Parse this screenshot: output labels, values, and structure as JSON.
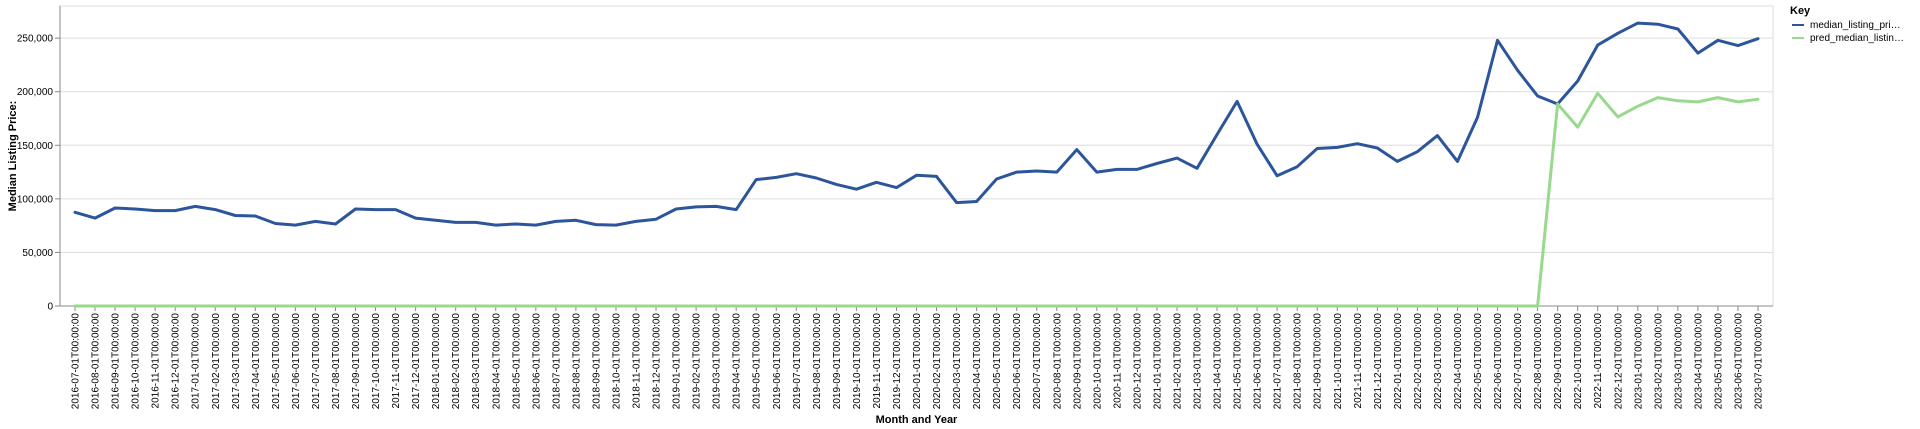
{
  "chart_data": {
    "type": "line",
    "title": "",
    "xlabel": "Month and Year",
    "ylabel": "Median Listing Price:",
    "ylim": [
      0,
      280000
    ],
    "yticks": [
      0,
      50000,
      100000,
      150000,
      200000,
      250000
    ],
    "ytick_labels": [
      "0",
      "50,000",
      "100,000",
      "150,000",
      "200,000",
      "250,000"
    ],
    "grid": true,
    "legend": {
      "title": "Key",
      "placement": "right"
    },
    "x": [
      "2016-07-01T00:00:00",
      "2016-08-01T00:00:00",
      "2016-09-01T00:00:00",
      "2016-10-01T00:00:00",
      "2016-11-01T00:00:00",
      "2016-12-01T00:00:00",
      "2017-01-01T00:00:00",
      "2017-02-01T00:00:00",
      "2017-03-01T00:00:00",
      "2017-04-01T00:00:00",
      "2017-05-01T00:00:00",
      "2017-06-01T00:00:00",
      "2017-07-01T00:00:00",
      "2017-08-01T00:00:00",
      "2017-09-01T00:00:00",
      "2017-10-01T00:00:00",
      "2017-11-01T00:00:00",
      "2017-12-01T00:00:00",
      "2018-01-01T00:00:00",
      "2018-02-01T00:00:00",
      "2018-03-01T00:00:00",
      "2018-04-01T00:00:00",
      "2018-05-01T00:00:00",
      "2018-06-01T00:00:00",
      "2018-07-01T00:00:00",
      "2018-08-01T00:00:00",
      "2018-09-01T00:00:00",
      "2018-10-01T00:00:00",
      "2018-11-01T00:00:00",
      "2018-12-01T00:00:00",
      "2019-01-01T00:00:00",
      "2019-02-01T00:00:00",
      "2019-03-01T00:00:00",
      "2019-04-01T00:00:00",
      "2019-05-01T00:00:00",
      "2019-06-01T00:00:00",
      "2019-07-01T00:00:00",
      "2019-08-01T00:00:00",
      "2019-09-01T00:00:00",
      "2019-10-01T00:00:00",
      "2019-11-01T00:00:00",
      "2019-12-01T00:00:00",
      "2020-01-01T00:00:00",
      "2020-02-01T00:00:00",
      "2020-03-01T00:00:00",
      "2020-04-01T00:00:00",
      "2020-05-01T00:00:00",
      "2020-06-01T00:00:00",
      "2020-07-01T00:00:00",
      "2020-08-01T00:00:00",
      "2020-09-01T00:00:00",
      "2020-10-01T00:00:00",
      "2020-11-01T00:00:00",
      "2020-12-01T00:00:00",
      "2021-01-01T00:00:00",
      "2021-02-01T00:00:00",
      "2021-03-01T00:00:00",
      "2021-04-01T00:00:00",
      "2021-05-01T00:00:00",
      "2021-06-01T00:00:00",
      "2021-07-01T00:00:00",
      "2021-08-01T00:00:00",
      "2021-09-01T00:00:00",
      "2021-10-01T00:00:00",
      "2021-11-01T00:00:00",
      "2021-12-01T00:00:00",
      "2022-01-01T00:00:00",
      "2022-02-01T00:00:00",
      "2022-03-01T00:00:00",
      "2022-04-01T00:00:00",
      "2022-05-01T00:00:00",
      "2022-06-01T00:00:00",
      "2022-07-01T00:00:00",
      "2022-08-01T00:00:00",
      "2022-09-01T00:00:00",
      "2022-10-01T00:00:00",
      "2022-11-01T00:00:00",
      "2022-12-01T00:00:00",
      "2023-01-01T00:00:00",
      "2023-02-01T00:00:00",
      "2023-03-01T00:00:00",
      "2023-04-01T00:00:00",
      "2023-05-01T00:00:00",
      "2023-06-01T00:00:00",
      "2023-07-01T00:00:00"
    ],
    "series": [
      {
        "name": "median_listing_pri…",
        "color": "#2c559c",
        "values": [
          87500,
          82000,
          91500,
          90500,
          89000,
          89000,
          93000,
          90000,
          84500,
          84000,
          77000,
          75500,
          79000,
          76500,
          90500,
          90000,
          90000,
          82000,
          80000,
          78000,
          78000,
          75500,
          76500,
          75500,
          79000,
          80000,
          76000,
          75500,
          79000,
          81000,
          90500,
          92500,
          93000,
          90000,
          118000,
          120000,
          123500,
          119500,
          113500,
          109000,
          115500,
          110500,
          122000,
          121000,
          96500,
          97500,
          118500,
          125000,
          126000,
          125000,
          146000,
          125000,
          127500,
          127500,
          133000,
          138000,
          128500,
          160000,
          191000,
          151000,
          121500,
          130000,
          147000,
          148000,
          151500,
          147500,
          135000,
          144000,
          159000,
          135000,
          176000,
          248000,
          220000,
          196000,
          188500,
          210000,
          243500,
          254500,
          264000,
          263000,
          258500,
          236000,
          248000,
          243000,
          249500
        ]
      },
      {
        "name": "pred_median_listin…",
        "color": "#98d98e",
        "values": [
          0,
          0,
          0,
          0,
          0,
          0,
          0,
          0,
          0,
          0,
          0,
          0,
          0,
          0,
          0,
          0,
          0,
          0,
          0,
          0,
          0,
          0,
          0,
          0,
          0,
          0,
          0,
          0,
          0,
          0,
          0,
          0,
          0,
          0,
          0,
          0,
          0,
          0,
          0,
          0,
          0,
          0,
          0,
          0,
          0,
          0,
          0,
          0,
          0,
          0,
          0,
          0,
          0,
          0,
          0,
          0,
          0,
          0,
          0,
          0,
          0,
          0,
          0,
          0,
          0,
          0,
          0,
          0,
          0,
          0,
          0,
          0,
          0,
          0,
          188500,
          167000,
          198500,
          176500,
          186500,
          194500,
          191500,
          190500,
          194500,
          190500,
          193000
        ]
      }
    ]
  }
}
